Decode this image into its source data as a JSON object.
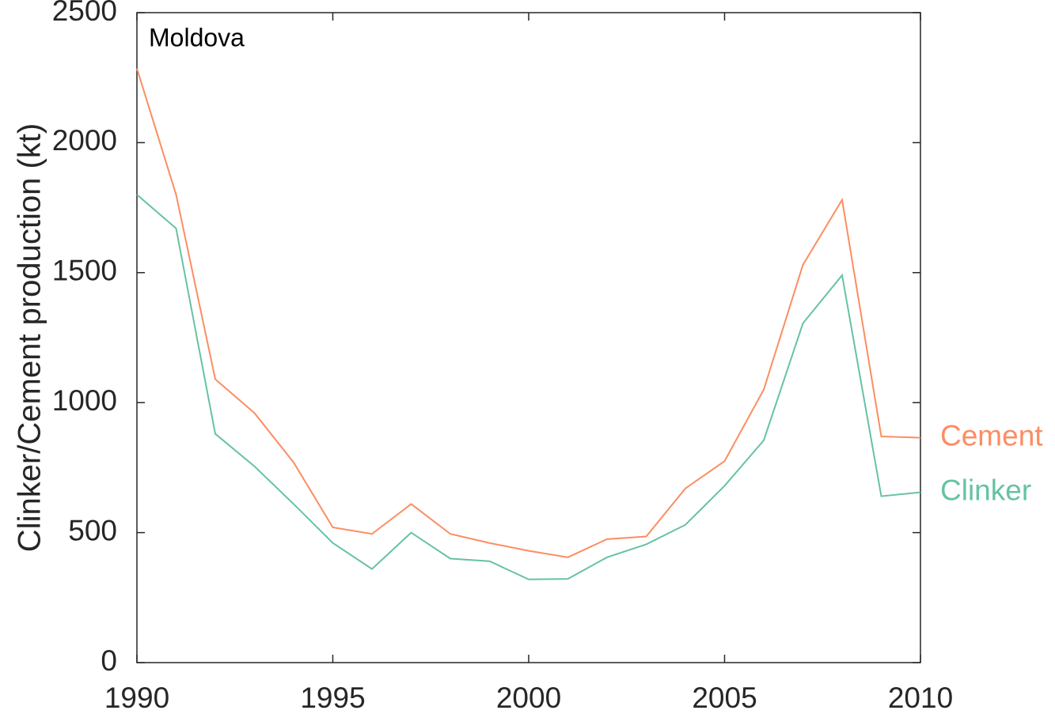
{
  "chart_data": {
    "type": "line",
    "ylabel": "Clinker/Cement production (kt)",
    "annotation": "Moldova",
    "x": [
      1990,
      1991,
      1992,
      1993,
      1994,
      1995,
      1996,
      1997,
      1998,
      1999,
      2000,
      2001,
      2002,
      2003,
      2004,
      2005,
      2006,
      2007,
      2008,
      2009,
      2010
    ],
    "series": [
      {
        "name": "Cement",
        "color": "#fc8d62",
        "values": [
          2285,
          1800,
          1090,
          960,
          770,
          520,
          495,
          610,
          495,
          460,
          430,
          405,
          475,
          485,
          670,
          775,
          1050,
          1530,
          1780,
          870,
          865
        ]
      },
      {
        "name": "Clinker",
        "color": "#66c2a5",
        "values": [
          1800,
          1670,
          880,
          755,
          610,
          460,
          360,
          500,
          400,
          390,
          320,
          322,
          405,
          455,
          530,
          680,
          855,
          1305,
          1490,
          640,
          655
        ]
      }
    ],
    "xlim": [
      1990,
      2010
    ],
    "xticks": [
      1990,
      1995,
      2000,
      2005,
      2010
    ],
    "ylim": [
      0,
      2500
    ],
    "yticks": [
      0,
      500,
      1000,
      1500,
      2000,
      2500
    ],
    "grid": false
  }
}
